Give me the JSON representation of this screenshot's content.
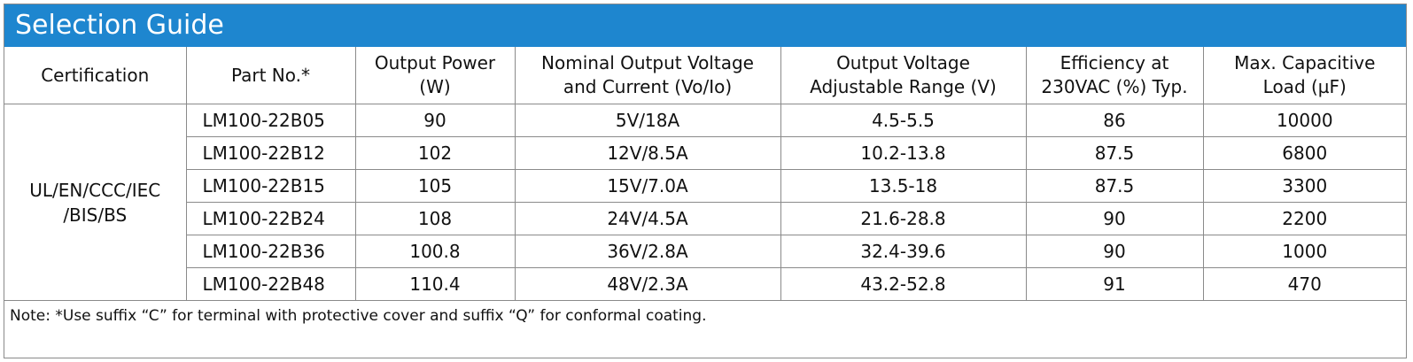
{
  "title": "Selection Guide",
  "headers": {
    "certification": "Certification",
    "part_no": "Part No.*",
    "output_power": [
      "Output Power",
      "(W)"
    ],
    "nominal_output": [
      "Nominal Output Voltage",
      "and Current (Vo/Io)"
    ],
    "adjustable_range": [
      "Output Voltage",
      "Adjustable Range (V)"
    ],
    "efficiency": [
      "Efficiency at",
      "230VAC (%) Typ."
    ],
    "capacitive_load": [
      "Max. Capacitive",
      "Load (µF)"
    ]
  },
  "certification": [
    "UL/EN/CCC/IEC",
    "/BIS/BS"
  ],
  "rows": [
    {
      "part_no": "LM100-22B05",
      "output_power": "90",
      "nominal_output": "5V/18A",
      "adjustable_range": "4.5-5.5",
      "efficiency": "86",
      "capacitive_load": "10000"
    },
    {
      "part_no": "LM100-22B12",
      "output_power": "102",
      "nominal_output": "12V/8.5A",
      "adjustable_range": "10.2-13.8",
      "efficiency": "87.5",
      "capacitive_load": "6800"
    },
    {
      "part_no": "LM100-22B15",
      "output_power": "105",
      "nominal_output": "15V/7.0A",
      "adjustable_range": "13.5-18",
      "efficiency": "87.5",
      "capacitive_load": "3300"
    },
    {
      "part_no": "LM100-22B24",
      "output_power": "108",
      "nominal_output": "24V/4.5A",
      "adjustable_range": "21.6-28.8",
      "efficiency": "90",
      "capacitive_load": "2200"
    },
    {
      "part_no": "LM100-22B36",
      "output_power": "100.8",
      "nominal_output": "36V/2.8A",
      "adjustable_range": "32.4-39.6",
      "efficiency": "90",
      "capacitive_load": "1000"
    },
    {
      "part_no": "LM100-22B48",
      "output_power": "110.4",
      "nominal_output": "48V/2.3A",
      "adjustable_range": "43.2-52.8",
      "efficiency": "91",
      "capacitive_load": "470"
    }
  ],
  "note": "Note: *Use suffix “C” for terminal with protective cover and suffix “Q” for conformal coating.",
  "colors": {
    "title_bar": "#1e86cf",
    "title_text": "#ffffff",
    "grid": "#8a8a8a"
  }
}
